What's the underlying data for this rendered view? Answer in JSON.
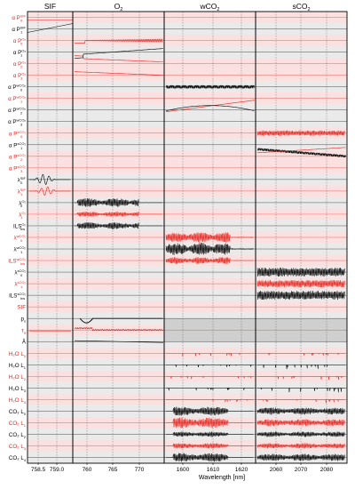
{
  "chart_data": {
    "type": "line",
    "xlabel": "Wavelength [nm]",
    "colors": {
      "black": "#000000",
      "red": "#e8231c",
      "band_gray": "#d9d9d9",
      "band_pink": "#f7c6c6"
    },
    "panels": [
      {
        "title": "SIF",
        "xticks": [
          "758.5",
          "759.0"
        ]
      },
      {
        "title": "O",
        "title_sub": "2",
        "xticks": [
          "760",
          "765",
          "770"
        ]
      },
      {
        "title": "wCO",
        "title_sub": "2",
        "xticks": [
          "1600",
          "1610",
          "1620"
        ]
      },
      {
        "title": "sCO",
        "title_sub": "2",
        "xticks": [
          "2060",
          "2070",
          "2080"
        ]
      }
    ],
    "rows": [
      {
        "label": "α P",
        "sup": "SIF",
        "sub": "0",
        "color": "red"
      },
      {
        "label": "α P",
        "sup": "SIF",
        "sub": "1",
        "color": "black"
      },
      {
        "label": "α P",
        "sup": "O₂",
        "sub": "0",
        "color": "red"
      },
      {
        "label": "α P",
        "sup": "O₂",
        "sub": "1",
        "color": "black"
      },
      {
        "label": "α P",
        "sup": "O₂",
        "sub": "2",
        "color": "red"
      },
      {
        "label": "α P",
        "sup": "O₂",
        "sub": "3",
        "color": "red"
      },
      {
        "label": "α P",
        "sup": "wCO₂",
        "sub": "0",
        "color": "black"
      },
      {
        "label": "α P",
        "sup": "wCO₂",
        "sub": "1",
        "color": "red"
      },
      {
        "label": "α P",
        "sup": "wCO₂",
        "sub": "2",
        "color": "black"
      },
      {
        "label": "α P",
        "sup": "wCO₂",
        "sub": "3",
        "color": "black"
      },
      {
        "label": "α P",
        "sup": "sCO₂",
        "sub": "0",
        "color": "red"
      },
      {
        "label": "α P",
        "sup": "sCO₂",
        "sub": "1",
        "color": "black"
      },
      {
        "label": "α P",
        "sup": "sCO₂",
        "sub": "2",
        "color": "red"
      },
      {
        "label": "α P",
        "sup": "sCO₂",
        "sub": "3",
        "color": "red"
      },
      {
        "label": "λ",
        "sup": "SIF",
        "sub": "0",
        "color": "black"
      },
      {
        "label": "λ",
        "sup": "SIF",
        "sub": "1",
        "color": "red"
      },
      {
        "label": "λ",
        "sup": "O₂",
        "sub": "0",
        "color": "black"
      },
      {
        "label": "λ",
        "sup": "O₂",
        "sub": "1",
        "color": "red"
      },
      {
        "label": "ILS",
        "sup": "O₂",
        "sub": "hw",
        "color": "black"
      },
      {
        "label": "λ",
        "sup": "wCO₂",
        "sub": "0",
        "color": "red"
      },
      {
        "label": "λ",
        "sup": "wCO₂",
        "sub": "1",
        "color": "black"
      },
      {
        "label": "ILS",
        "sup": "wCO₂",
        "sub": "hw",
        "color": "red"
      },
      {
        "label": "λ",
        "sup": "sCO₂",
        "sub": "0",
        "color": "black"
      },
      {
        "label": "λ",
        "sup": "sCO₂",
        "sub": "1",
        "color": "red"
      },
      {
        "label": "ILS",
        "sup": "sCO₂",
        "sub": "hw",
        "color": "black"
      },
      {
        "label": "SIF",
        "sup": "",
        "sub": "",
        "color": "red"
      },
      {
        "label": "p",
        "sup": "",
        "sub": "s",
        "color": "black"
      },
      {
        "label": "τ",
        "sup": "",
        "sub": "a",
        "color": "red"
      },
      {
        "label": "Å",
        "sup": "",
        "sub": "",
        "color": "black"
      },
      {
        "label": "H₂O L",
        "sup": "",
        "sub": "0",
        "color": "red"
      },
      {
        "label": "H₂O L",
        "sup": "",
        "sub": "1",
        "color": "black"
      },
      {
        "label": "H₂O L",
        "sup": "",
        "sub": "2",
        "color": "red"
      },
      {
        "label": "H₂O L",
        "sup": "",
        "sub": "3",
        "color": "black"
      },
      {
        "label": "H₂O L",
        "sup": "",
        "sub": "4",
        "color": "red"
      },
      {
        "label": "CO₂ L",
        "sup": "",
        "sub": "0",
        "color": "black"
      },
      {
        "label": "CO₂ L",
        "sup": "",
        "sub": "1",
        "color": "red"
      },
      {
        "label": "CO₂ L",
        "sup": "",
        "sub": "2",
        "color": "black"
      },
      {
        "label": "CO₂ L",
        "sup": "",
        "sub": "3",
        "color": "red"
      },
      {
        "label": "CO₂ L",
        "sup": "",
        "sub": "4",
        "color": "black"
      }
    ],
    "grid": true
  }
}
